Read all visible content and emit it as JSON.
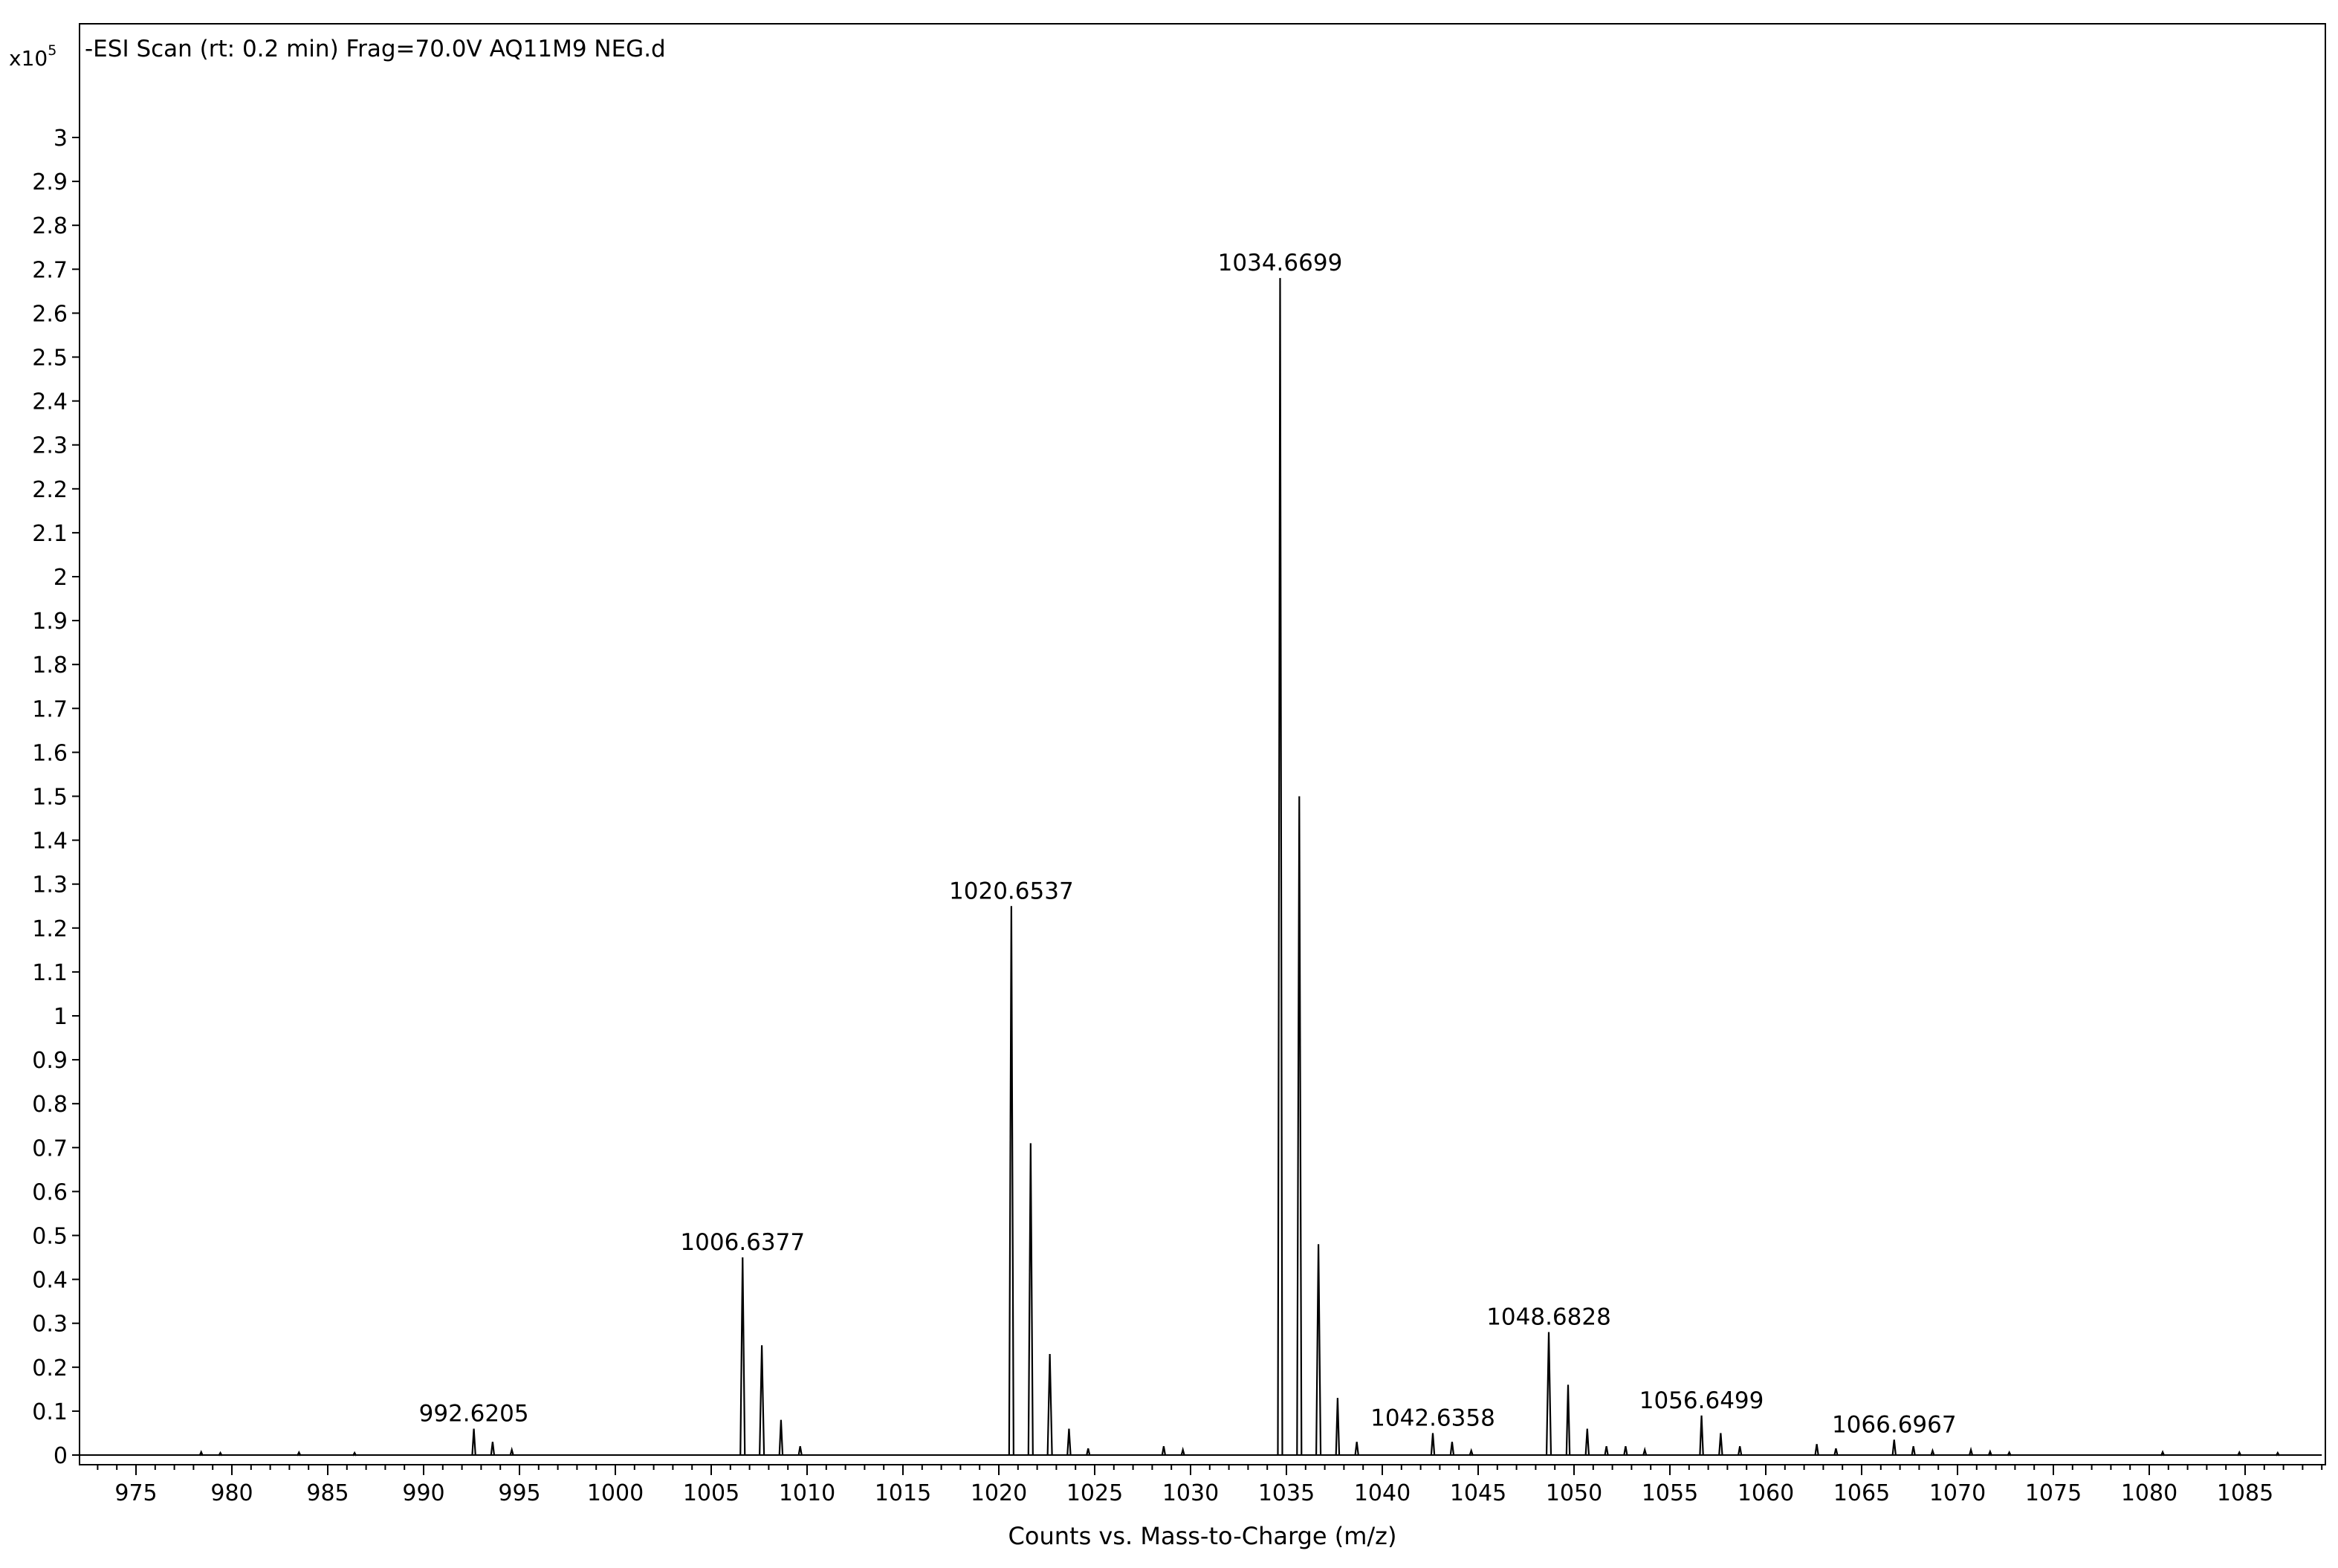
{
  "chart_data": {
    "type": "line",
    "title": "-ESI Scan (rt: 0.2 min) Frag=70.0V AQ11M9 NEG.d",
    "xlabel": "Counts vs. Mass-to-Charge (m/z)",
    "ylabel": "",
    "y_scale_base": "x10",
    "y_scale_exponent": "5",
    "xlim": [
      972,
      1089
    ],
    "ylim": [
      0,
      3.09
    ],
    "x_ticks": [
      "975",
      "980",
      "985",
      "990",
      "995",
      "1000",
      "1005",
      "1010",
      "1015",
      "1020",
      "1025",
      "1030",
      "1035",
      "1040",
      "1045",
      "1050",
      "1055",
      "1060",
      "1065",
      "1070",
      "1075",
      "1080",
      "1085"
    ],
    "y_ticks": [
      "0",
      "0.1",
      "0.2",
      "0.3",
      "0.4",
      "0.5",
      "0.6",
      "0.7",
      "0.8",
      "0.9",
      "1",
      "1.1",
      "1.2",
      "1.3",
      "1.4",
      "1.5",
      "1.6",
      "1.7",
      "1.8",
      "1.9",
      "2",
      "2.1",
      "2.2",
      "2.3",
      "2.4",
      "2.5",
      "2.6",
      "2.7",
      "2.8",
      "2.9",
      "3"
    ],
    "grid": false,
    "line_color": "#000000",
    "peaks": [
      {
        "mz": 978.4,
        "intensity": 0.007
      },
      {
        "mz": 979.4,
        "intensity": 0.005
      },
      {
        "mz": 983.5,
        "intensity": 0.006
      },
      {
        "mz": 986.4,
        "intensity": 0.005
      },
      {
        "mz": 992.6205,
        "intensity": 0.06
      },
      {
        "mz": 993.6,
        "intensity": 0.03
      },
      {
        "mz": 994.6,
        "intensity": 0.012
      },
      {
        "mz": 1006.6377,
        "intensity": 0.45
      },
      {
        "mz": 1007.64,
        "intensity": 0.25
      },
      {
        "mz": 1008.64,
        "intensity": 0.08
      },
      {
        "mz": 1009.64,
        "intensity": 0.02
      },
      {
        "mz": 1020.6537,
        "intensity": 1.25
      },
      {
        "mz": 1021.66,
        "intensity": 0.71
      },
      {
        "mz": 1022.66,
        "intensity": 0.23
      },
      {
        "mz": 1023.66,
        "intensity": 0.06
      },
      {
        "mz": 1024.66,
        "intensity": 0.015
      },
      {
        "mz": 1028.6,
        "intensity": 0.02
      },
      {
        "mz": 1029.6,
        "intensity": 0.012
      },
      {
        "mz": 1034.6699,
        "intensity": 2.68
      },
      {
        "mz": 1035.67,
        "intensity": 1.5
      },
      {
        "mz": 1036.67,
        "intensity": 0.48
      },
      {
        "mz": 1037.67,
        "intensity": 0.13
      },
      {
        "mz": 1038.67,
        "intensity": 0.03
      },
      {
        "mz": 1042.6358,
        "intensity": 0.05
      },
      {
        "mz": 1043.64,
        "intensity": 0.03
      },
      {
        "mz": 1044.64,
        "intensity": 0.01
      },
      {
        "mz": 1048.6828,
        "intensity": 0.28
      },
      {
        "mz": 1049.69,
        "intensity": 0.16
      },
      {
        "mz": 1050.69,
        "intensity": 0.06
      },
      {
        "mz": 1051.69,
        "intensity": 0.02
      },
      {
        "mz": 1052.69,
        "intensity": 0.02
      },
      {
        "mz": 1053.69,
        "intensity": 0.012
      },
      {
        "mz": 1056.6499,
        "intensity": 0.09
      },
      {
        "mz": 1057.65,
        "intensity": 0.05
      },
      {
        "mz": 1058.65,
        "intensity": 0.02
      },
      {
        "mz": 1062.66,
        "intensity": 0.025
      },
      {
        "mz": 1063.66,
        "intensity": 0.015
      },
      {
        "mz": 1066.6967,
        "intensity": 0.035
      },
      {
        "mz": 1067.7,
        "intensity": 0.02
      },
      {
        "mz": 1068.7,
        "intensity": 0.01
      },
      {
        "mz": 1070.7,
        "intensity": 0.012
      },
      {
        "mz": 1071.7,
        "intensity": 0.008
      },
      {
        "mz": 1072.7,
        "intensity": 0.006
      },
      {
        "mz": 1080.7,
        "intensity": 0.007
      },
      {
        "mz": 1084.7,
        "intensity": 0.006
      },
      {
        "mz": 1086.7,
        "intensity": 0.005
      }
    ],
    "peak_labels": [
      {
        "text": "992.6205",
        "mz": 992.6205,
        "intensity": 0.06
      },
      {
        "text": "1006.6377",
        "mz": 1006.6377,
        "intensity": 0.45
      },
      {
        "text": "1020.6537",
        "mz": 1020.6537,
        "intensity": 1.25
      },
      {
        "text": "1034.6699",
        "mz": 1034.6699,
        "intensity": 2.68
      },
      {
        "text": "1042.6358",
        "mz": 1042.6358,
        "intensity": 0.05
      },
      {
        "text": "1048.6828",
        "mz": 1048.6828,
        "intensity": 0.28
      },
      {
        "text": "1056.6499",
        "mz": 1056.6499,
        "intensity": 0.09
      },
      {
        "text": "1066.6967",
        "mz": 1066.6967,
        "intensity": 0.035
      }
    ]
  }
}
